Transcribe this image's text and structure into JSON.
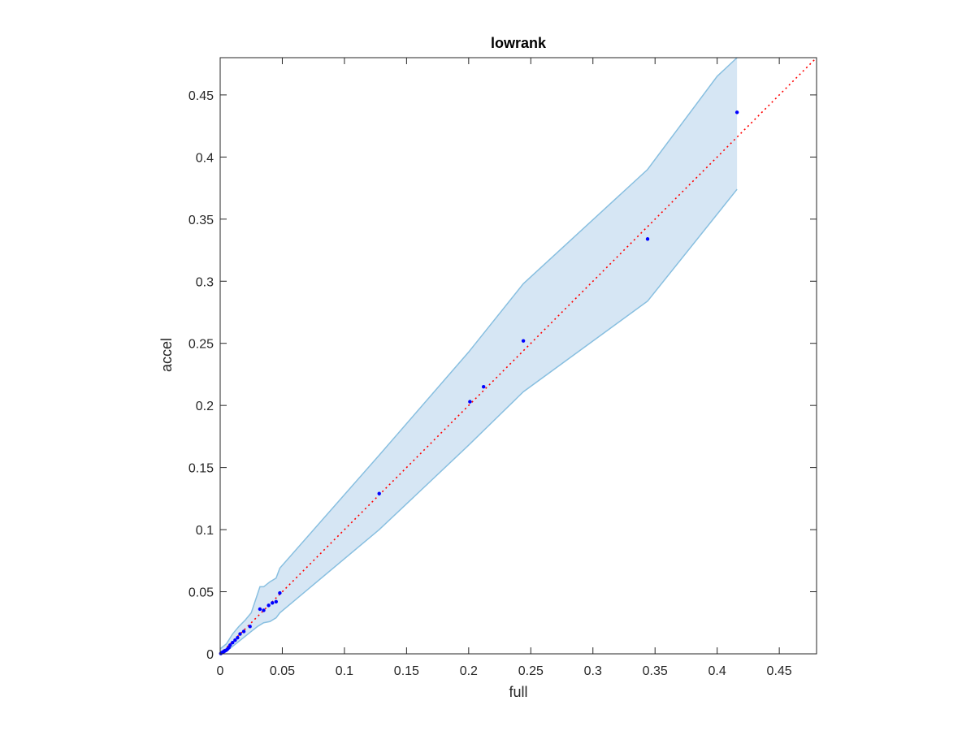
{
  "chart_data": {
    "type": "scatter",
    "title": "lowrank",
    "xlabel": "full",
    "ylabel": "accel",
    "xlim": [
      0,
      0.48
    ],
    "ylim": [
      0,
      0.48
    ],
    "xticks": [
      0,
      0.05,
      0.1,
      0.15,
      0.2,
      0.25,
      0.3,
      0.35,
      0.4,
      0.45
    ],
    "yticks": [
      0,
      0.05,
      0.1,
      0.15,
      0.2,
      0.25,
      0.3,
      0.35,
      0.4,
      0.45
    ],
    "xtick_labels": [
      "0",
      "0.05",
      "0.1",
      "0.15",
      "0.2",
      "0.25",
      "0.3",
      "0.35",
      "0.4",
      "0.45"
    ],
    "ytick_labels": [
      "0",
      "0.05",
      "0.1",
      "0.15",
      "0.2",
      "0.25",
      "0.3",
      "0.35",
      "0.4",
      "0.45"
    ],
    "grid": false,
    "points": [
      {
        "x": 0.0005,
        "y": 0.0003
      },
      {
        "x": 0.001,
        "y": 0.0008
      },
      {
        "x": 0.0015,
        "y": 0.001
      },
      {
        "x": 0.002,
        "y": 0.0012
      },
      {
        "x": 0.0025,
        "y": 0.0015
      },
      {
        "x": 0.003,
        "y": 0.002
      },
      {
        "x": 0.0035,
        "y": 0.0022
      },
      {
        "x": 0.004,
        "y": 0.0025
      },
      {
        "x": 0.005,
        "y": 0.003
      },
      {
        "x": 0.006,
        "y": 0.004
      },
      {
        "x": 0.007,
        "y": 0.005
      },
      {
        "x": 0.008,
        "y": 0.007
      },
      {
        "x": 0.01,
        "y": 0.009
      },
      {
        "x": 0.012,
        "y": 0.011
      },
      {
        "x": 0.014,
        "y": 0.013
      },
      {
        "x": 0.016,
        "y": 0.016
      },
      {
        "x": 0.019,
        "y": 0.018
      },
      {
        "x": 0.024,
        "y": 0.022
      },
      {
        "x": 0.032,
        "y": 0.036
      },
      {
        "x": 0.035,
        "y": 0.035
      },
      {
        "x": 0.039,
        "y": 0.039
      },
      {
        "x": 0.042,
        "y": 0.041
      },
      {
        "x": 0.045,
        "y": 0.042
      },
      {
        "x": 0.048,
        "y": 0.049
      },
      {
        "x": 0.128,
        "y": 0.129
      },
      {
        "x": 0.201,
        "y": 0.203
      },
      {
        "x": 0.212,
        "y": 0.215
      },
      {
        "x": 0.244,
        "y": 0.252
      },
      {
        "x": 0.344,
        "y": 0.334
      },
      {
        "x": 0.416,
        "y": 0.436
      }
    ],
    "reference_line": {
      "from": [
        0,
        0
      ],
      "to": [
        0.48,
        0.48
      ],
      "style": "dotted",
      "color": "#ff0000"
    },
    "band": {
      "upper": [
        [
          0,
          0.004
        ],
        [
          0.005,
          0.008
        ],
        [
          0.01,
          0.016
        ],
        [
          0.015,
          0.022
        ],
        [
          0.02,
          0.027
        ],
        [
          0.025,
          0.033
        ],
        [
          0.03,
          0.048
        ],
        [
          0.032,
          0.054
        ],
        [
          0.035,
          0.054
        ],
        [
          0.04,
          0.058
        ],
        [
          0.045,
          0.061
        ],
        [
          0.048,
          0.069
        ],
        [
          0.128,
          0.16
        ],
        [
          0.2,
          0.243
        ],
        [
          0.244,
          0.298
        ],
        [
          0.344,
          0.39
        ],
        [
          0.4,
          0.465
        ],
        [
          0.416,
          0.48
        ]
      ],
      "lower": [
        [
          0,
          0
        ],
        [
          0.005,
          0.002
        ],
        [
          0.01,
          0.006
        ],
        [
          0.015,
          0.01
        ],
        [
          0.02,
          0.014
        ],
        [
          0.025,
          0.018
        ],
        [
          0.03,
          0.022
        ],
        [
          0.035,
          0.025
        ],
        [
          0.04,
          0.026
        ],
        [
          0.045,
          0.029
        ],
        [
          0.048,
          0.033
        ],
        [
          0.128,
          0.1
        ],
        [
          0.2,
          0.168
        ],
        [
          0.244,
          0.211
        ],
        [
          0.344,
          0.284
        ],
        [
          0.416,
          0.374
        ]
      ],
      "fill": "#d6e6f4",
      "edge": "#88bfe0"
    },
    "point_color": "#0000ff"
  }
}
